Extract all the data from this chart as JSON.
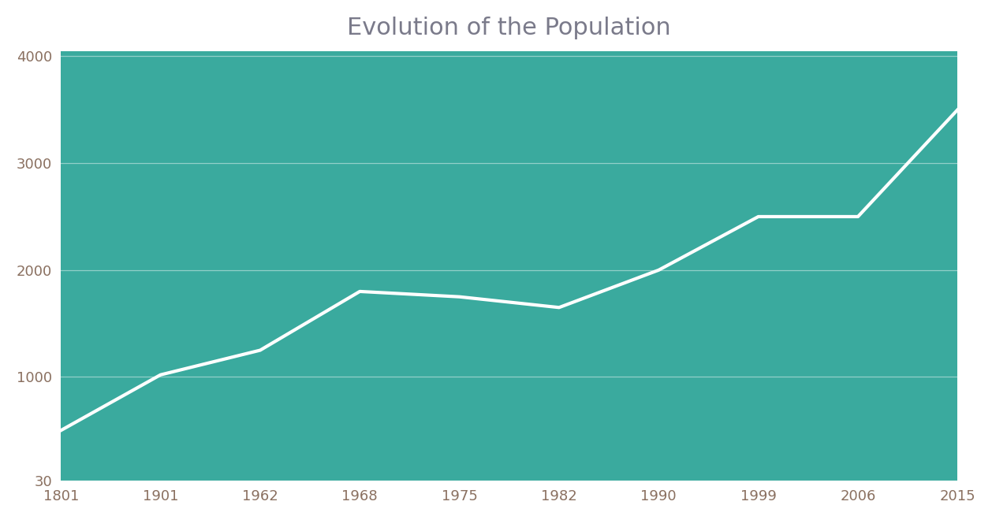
{
  "title": "Evolution of the Population",
  "x_labels": [
    "1801",
    "1901",
    "1962",
    "1968",
    "1975",
    "1982",
    "1990",
    "1999",
    "2006",
    "2015"
  ],
  "y_values": [
    500,
    1020,
    1250,
    1800,
    1750,
    1650,
    2000,
    2500,
    2500,
    3500
  ],
  "y_ticks": [
    30,
    1000,
    2000,
    3000,
    4000
  ],
  "y_tick_labels": [
    "30",
    "1000",
    "2000",
    "3000",
    "4000"
  ],
  "ylim_min": 30,
  "ylim_max": 4050,
  "background_color": "#3aaa9e",
  "fig_background_color": "#ffffff",
  "line_color": "#ffffff",
  "line_width": 3.0,
  "title_color": "#7a7a8a",
  "title_fontsize": 22,
  "tick_color": "#8a7060",
  "grid_color": "#ffffff",
  "grid_alpha": 0.45,
  "grid_linewidth": 0.9
}
